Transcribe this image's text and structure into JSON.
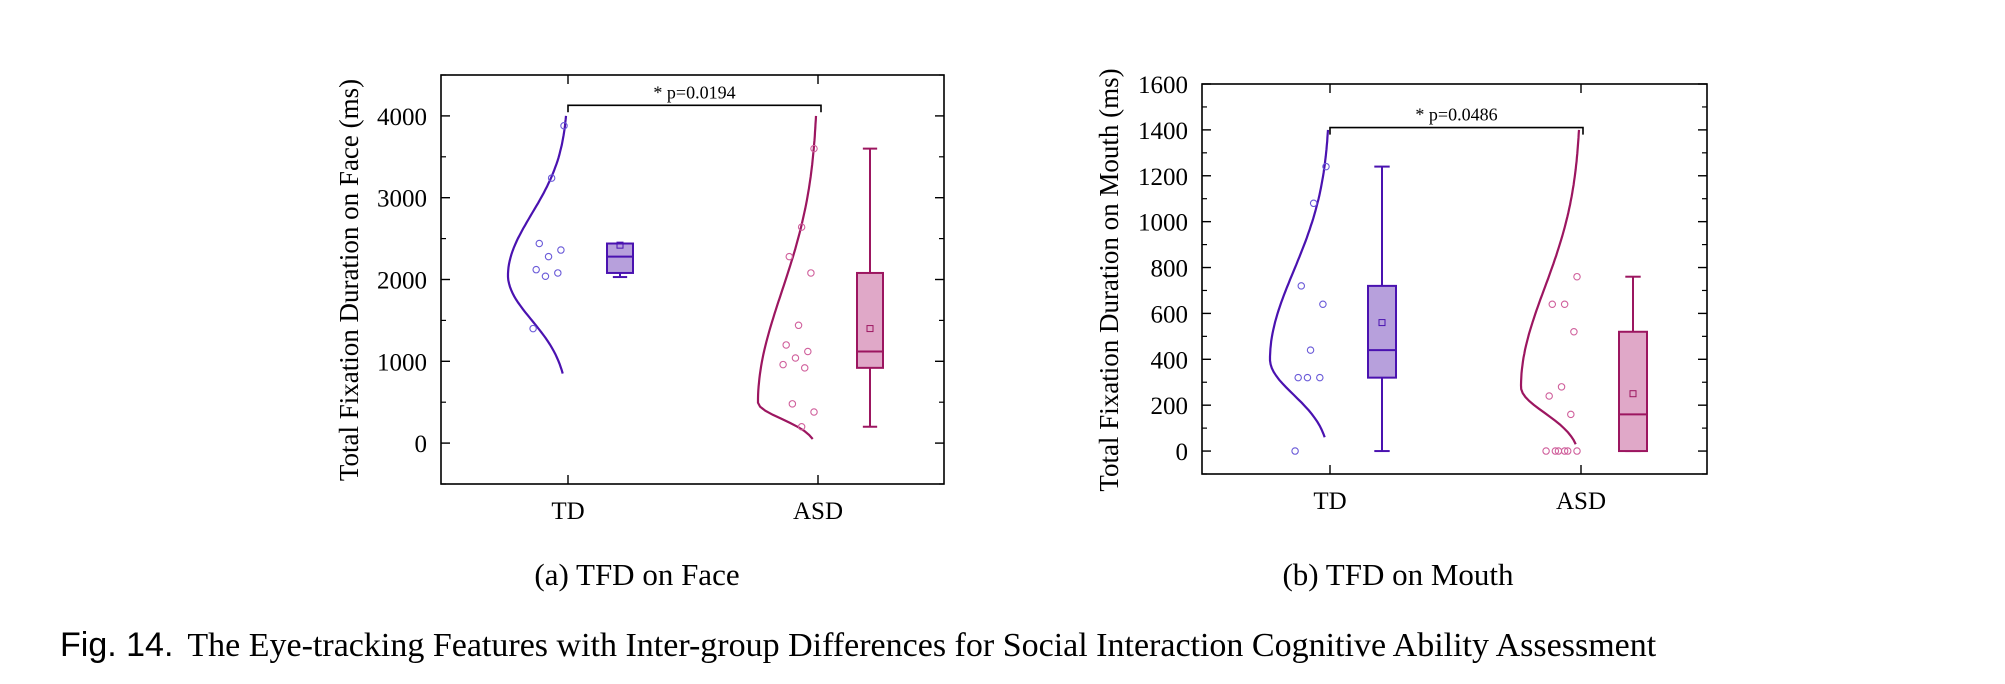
{
  "caption": {
    "label": "Fig. 14.",
    "text": "The Eye-tracking Features with Inter-group Differences for Social Interaction Cognitive Ability Assessment"
  },
  "colors": {
    "td_line": "#4a12b0",
    "td_fill": "#b7a0dc",
    "td_point": "#6a5ad8",
    "asd_line": "#9c1660",
    "asd_fill": "#e0a8c8",
    "asd_point": "#d0609c"
  },
  "chart_data": [
    {
      "type": "box",
      "subcaption": "(a) TFD on Face",
      "ylabel": "Total Fixation Duration on Face (ms)",
      "xlabel": "",
      "categories": [
        "TD",
        "ASD"
      ],
      "ylim": [
        -500,
        4500
      ],
      "yticks": [
        0,
        1000,
        2000,
        3000,
        4000
      ],
      "annotation": "* p=0.0194",
      "annotation_y": 4130,
      "groups": [
        {
          "name": "TD",
          "box": {
            "whisker_low": 2030,
            "q1": 2080,
            "median": 2280,
            "q3": 2440,
            "whisker_high": 2440,
            "mean": 2420
          },
          "points": [
            3880,
            3240,
            2440,
            2360,
            2280,
            2120,
            2080,
            2040,
            1400
          ],
          "density_range": [
            850,
            4000
          ],
          "density_peak": 2050
        },
        {
          "name": "ASD",
          "box": {
            "whisker_low": 200,
            "q1": 920,
            "median": 1120,
            "q3": 2080,
            "whisker_high": 3600,
            "mean": 1400
          },
          "points": [
            3600,
            2640,
            2280,
            2080,
            1440,
            1200,
            1120,
            1040,
            960,
            920,
            480,
            380,
            200
          ],
          "density_range": [
            50,
            4000
          ],
          "density_peak": 500
        }
      ]
    },
    {
      "type": "box",
      "subcaption": "(b) TFD on Mouth",
      "ylabel": "Total Fixation Duration on Mouth (ms)",
      "xlabel": "",
      "categories": [
        "TD",
        "ASD"
      ],
      "ylim": [
        -100,
        1600
      ],
      "yticks": [
        0,
        200,
        400,
        600,
        800,
        1000,
        1200,
        1400,
        1600
      ],
      "annotation": "* p=0.0486",
      "annotation_y": 1410,
      "groups": [
        {
          "name": "TD",
          "box": {
            "whisker_low": 0,
            "q1": 320,
            "median": 440,
            "q3": 720,
            "whisker_high": 1240,
            "mean": 560
          },
          "points": [
            1240,
            1080,
            720,
            640,
            440,
            320,
            320,
            320,
            0
          ],
          "density_range": [
            60,
            1400
          ],
          "density_peak": 400
        },
        {
          "name": "ASD",
          "box": {
            "whisker_low": 0,
            "q1": 0,
            "median": 160,
            "q3": 520,
            "whisker_high": 760,
            "mean": 250
          },
          "points": [
            760,
            640,
            640,
            520,
            280,
            240,
            160,
            0,
            0,
            0,
            0,
            0,
            0
          ],
          "density_range": [
            30,
            1400
          ],
          "density_peak": 280
        }
      ]
    }
  ]
}
